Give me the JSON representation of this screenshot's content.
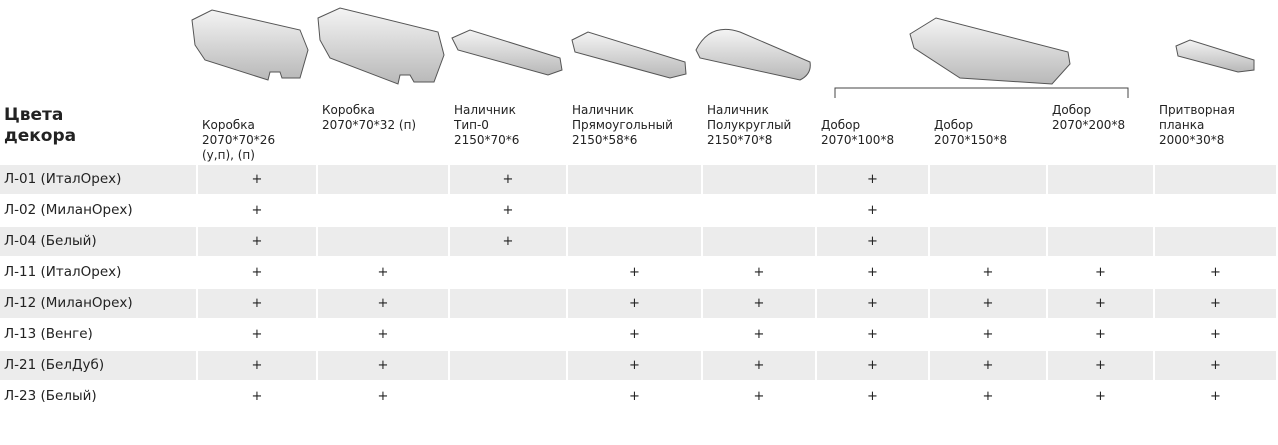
{
  "header": {
    "title": [
      "Цвета",
      "декора"
    ]
  },
  "columns": [
    {
      "lines": [
        "Коробка",
        "2070*70*26",
        "(у,п), (п)"
      ]
    },
    {
      "lines": [
        "Коробка",
        "2070*70*32 (п)"
      ]
    },
    {
      "lines": [
        "Наличник",
        "Тип-0",
        "2150*70*6"
      ]
    },
    {
      "lines": [
        "Наличник",
        "Прямоугольный",
        "2150*58*6"
      ]
    },
    {
      "lines": [
        "Наличник",
        "Полукруглый",
        "2150*70*8"
      ]
    },
    {
      "lines": [
        "Добор",
        "2070*100*8"
      ]
    },
    {
      "lines": [
        "Добор",
        "2070*150*8"
      ]
    },
    {
      "lines": [
        "Добор",
        "2070*200*8"
      ]
    },
    {
      "lines": [
        "Притворная",
        "планка",
        "2000*30*8"
      ]
    }
  ],
  "table": {
    "rows": [
      {
        "name": "Л-01 (ИталОрех)",
        "cells": [
          "+",
          null,
          "+",
          null,
          null,
          "+",
          null,
          null,
          null
        ]
      },
      {
        "name": "Л-02 (МиланОрех)",
        "cells": [
          "+",
          null,
          "+",
          null,
          null,
          "+",
          null,
          null,
          null
        ]
      },
      {
        "name": "Л-04 (Белый)",
        "cells": [
          "+",
          null,
          "+",
          null,
          null,
          "+",
          null,
          null,
          null
        ]
      },
      {
        "name": "Л-11 (ИталОрех)",
        "cells": [
          "+",
          "+",
          null,
          "+",
          "+",
          "+",
          "+",
          "+",
          "+"
        ]
      },
      {
        "name": "Л-12 (МиланОрех)",
        "cells": [
          "+",
          "+",
          null,
          "+",
          "+",
          "+",
          "+",
          "+",
          "+"
        ]
      },
      {
        "name": "Л-13 (Венге)",
        "cells": [
          "+",
          "+",
          null,
          "+",
          "+",
          "+",
          "+",
          "+",
          "+"
        ]
      },
      {
        "name": "Л-21 (БелДуб)",
        "cells": [
          "+",
          "+",
          null,
          "+",
          "+",
          "+",
          "+",
          "+",
          "+"
        ]
      },
      {
        "name": "Л-23 (Белый)",
        "cells": [
          "+",
          "+",
          null,
          "+",
          "+",
          "+",
          "+",
          "+",
          "+"
        ]
      }
    ]
  }
}
